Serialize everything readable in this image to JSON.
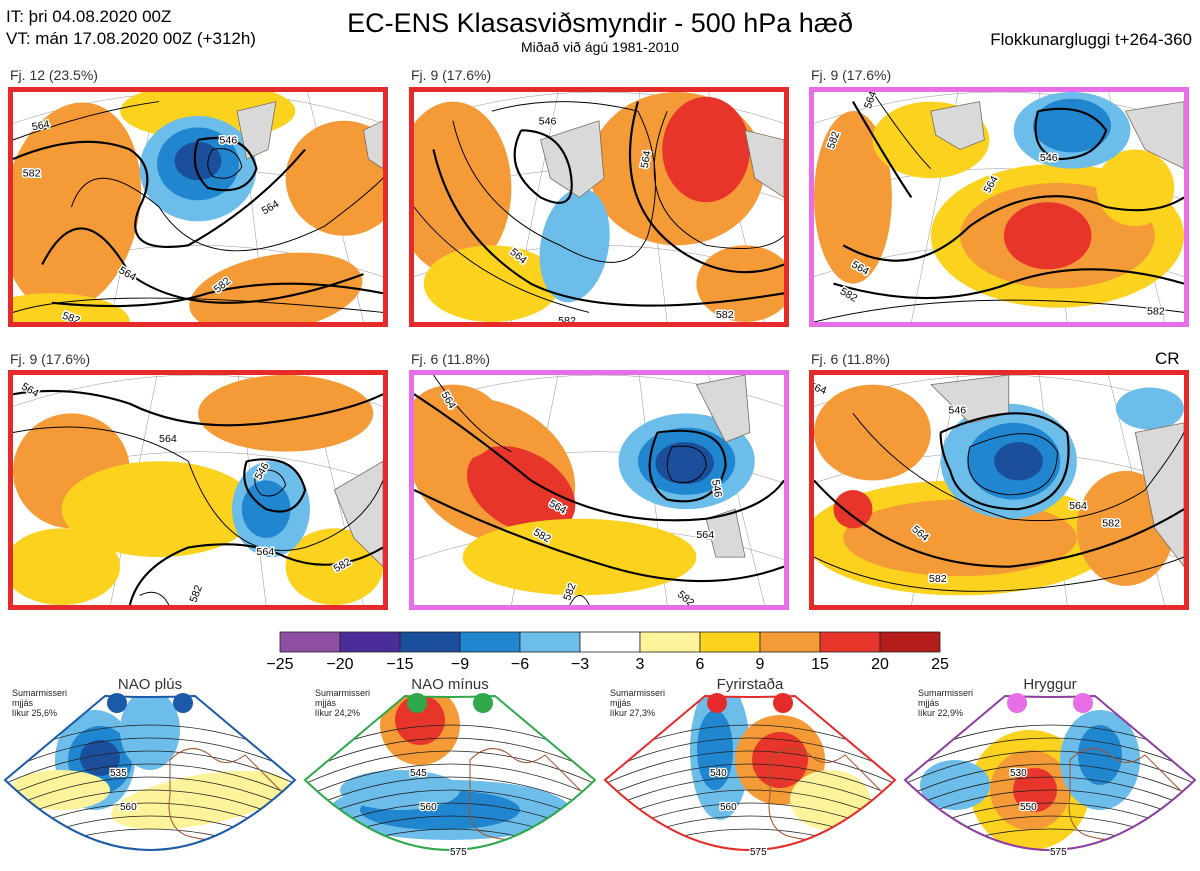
{
  "header": {
    "it": "IT: þri 04.08.2020 00Z",
    "vt": "VT: mán 17.08.2020 00Z  (+312h)",
    "title": "EC-ENS Klasasviðsmyndir - 500 hPa hæð",
    "subtitle": "Miðað við ágú 1981-2010",
    "window": "Flokkunargluggi t+264-360"
  },
  "cr_label": "CR",
  "panels": [
    {
      "label": "Fj. 12 (23.5%)",
      "border": "#e52a2a",
      "contours": [
        "564",
        "546",
        "564",
        "564",
        "582",
        "582",
        "582"
      ]
    },
    {
      "label": "Fj. 9 (17.6%)",
      "border": "#e52a2a",
      "contours": [
        "546",
        "564",
        "564",
        "582",
        "582"
      ]
    },
    {
      "label": "Fj. 9 (17.6%)",
      "border": "#e86ee8",
      "contours": [
        "564",
        "564",
        "546",
        "564",
        "564",
        "582",
        "582"
      ]
    },
    {
      "label": "Fj. 9 (17.6%)",
      "border": "#e52a2a",
      "contours": [
        "564",
        "564",
        "546",
        "564",
        "582",
        "582"
      ]
    },
    {
      "label": "Fj. 6 (11.8%)",
      "border": "#e86ee8",
      "contours": [
        "564",
        "564",
        "546",
        "564",
        "564",
        "582",
        "582"
      ]
    },
    {
      "label": "Fj. 6 (11.8%)",
      "border": "#e52a2a",
      "contours": [
        "564",
        "546",
        "564",
        "564",
        "582",
        "582"
      ]
    }
  ],
  "colorbar": {
    "ticks": [
      "−25",
      "−20",
      "−15",
      "−9",
      "−6",
      "−3",
      "3",
      "6",
      "9",
      "15",
      "20",
      "25"
    ],
    "colors": [
      "#8e4fa3",
      "#4b2d9a",
      "#1b4f9c",
      "#1f86cf",
      "#6cbde9",
      "#ffffff",
      "#fdf39a",
      "#fbd21d",
      "#f49a36",
      "#e8352b",
      "#b51c1c"
    ]
  },
  "regimes": [
    {
      "name": "NAO plús",
      "info": [
        "Sumarmisseri",
        "mjjás",
        "líkur 25,6%"
      ],
      "color": "#1b5aa8",
      "dots": "#1b5aa8",
      "labels": [
        "535",
        "560"
      ]
    },
    {
      "name": "NAO mínus",
      "info": [
        "Sumarmisseri",
        "mjjás",
        "líkur 24,2%"
      ],
      "color": "#2ea84a",
      "dots": "#2ea84a",
      "labels": [
        "545",
        "560",
        "575"
      ]
    },
    {
      "name": "Fyrirstaða",
      "info": [
        "Sumarmisseri",
        "mjjás",
        "líkur 27,3%"
      ],
      "color": "#e52a2a",
      "dots": "#e52a2a",
      "labels": [
        "540",
        "560",
        "575"
      ]
    },
    {
      "name": "Hryggur",
      "info": [
        "Sumarmisseri",
        "mjjás",
        "líkur 22,9%"
      ],
      "color": "#8e3da0",
      "dots": "#e86ee8",
      "labels": [
        "530",
        "550",
        "575"
      ]
    }
  ],
  "chart_data": {
    "type": "heatmap",
    "title": "EC-ENS Klasasviðsmyndir - 500 hPa hæð",
    "subtitle": "Miðað við ágú 1981-2010",
    "colorbar_levels": [
      -25,
      -20,
      -15,
      -9,
      -6,
      -3,
      3,
      6,
      9,
      15,
      20,
      25
    ],
    "clusters": [
      {
        "name": "Fj. 12",
        "probability_pct": 23.5
      },
      {
        "name": "Fj. 9",
        "probability_pct": 17.6
      },
      {
        "name": "Fj. 9",
        "probability_pct": 17.6
      },
      {
        "name": "Fj. 9",
        "probability_pct": 17.6
      },
      {
        "name": "Fj. 6",
        "probability_pct": 11.8
      },
      {
        "name": "Fj. 6",
        "probability_pct": 11.8
      }
    ],
    "regimes": [
      {
        "name": "NAO plús",
        "probability_pct": 25.6
      },
      {
        "name": "NAO mínus",
        "probability_pct": 24.2
      },
      {
        "name": "Fyrirstaða",
        "probability_pct": 27.3
      },
      {
        "name": "Hryggur",
        "probability_pct": 22.9
      }
    ]
  }
}
